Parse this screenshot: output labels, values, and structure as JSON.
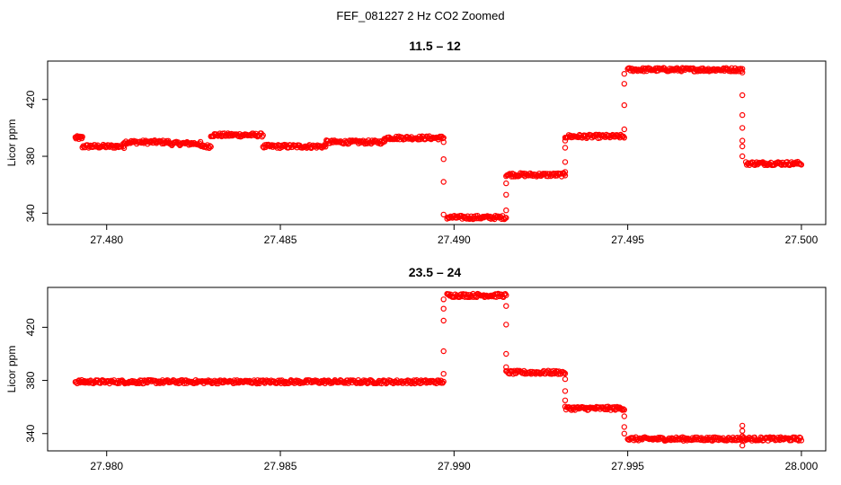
{
  "figure": {
    "title": "FEF_081227  2 Hz CO2 Zoomed",
    "marker_color": "#ff0000"
  },
  "chart_data": [
    {
      "type": "scatter",
      "title": "11.5 – 12",
      "xlabel": "",
      "ylabel": "Licor ppm",
      "xlim": [
        27.4783,
        27.5007
      ],
      "ylim": [
        332,
        447
      ],
      "xticks": [
        "27.480",
        "27.485",
        "27.490",
        "27.495",
        "27.500"
      ],
      "xtick_values": [
        27.48,
        27.485,
        27.49,
        27.495,
        27.5
      ],
      "yticks": [
        "340",
        "380",
        "420"
      ],
      "ytick_values": [
        340,
        380,
        420
      ],
      "grid": false,
      "segments": [
        {
          "x0": 27.4791,
          "x1": 27.4793,
          "y": 393
        },
        {
          "x0": 27.4793,
          "x1": 27.4805,
          "y": 387
        },
        {
          "x0": 27.4805,
          "x1": 27.4818,
          "y": 390
        },
        {
          "x0": 27.4818,
          "x1": 27.4827,
          "y": 389
        },
        {
          "x0": 27.4827,
          "x1": 27.483,
          "y": 387
        },
        {
          "x0": 27.483,
          "x1": 27.4845,
          "y": 395
        },
        {
          "x0": 27.4845,
          "x1": 27.4863,
          "y": 387
        },
        {
          "x0": 27.4863,
          "x1": 27.488,
          "y": 390
        },
        {
          "x0": 27.488,
          "x1": 27.4897,
          "y": 393
        },
        {
          "x0": 27.4898,
          "x1": 27.4915,
          "y": 337
        },
        {
          "x0": 27.4915,
          "x1": 27.4932,
          "y": 367
        },
        {
          "x0": 27.4932,
          "x1": 27.4949,
          "y": 394
        },
        {
          "x0": 27.495,
          "x1": 27.4983,
          "y": 441
        },
        {
          "x0": 27.4984,
          "x1": 27.5,
          "y": 375
        }
      ],
      "transitions": [
        {
          "x": 27.4897,
          "ys": [
            390,
            378,
            362,
            339
          ]
        },
        {
          "x": 27.4915,
          "ys": [
            342,
            353,
            361
          ]
        },
        {
          "x": 27.4932,
          "ys": [
            369,
            376,
            386,
            391
          ]
        },
        {
          "x": 27.4949,
          "ys": [
            399,
            416,
            431,
            438
          ]
        },
        {
          "x": 27.4983,
          "ys": [
            439,
            423,
            409,
            400,
            391,
            387,
            380
          ]
        }
      ]
    },
    {
      "type": "scatter",
      "title": "23.5 – 24",
      "xlabel": "",
      "ylabel": "Licor ppm",
      "xlim": [
        27.9783,
        28.0007
      ],
      "ylim": [
        327,
        450
      ],
      "xticks": [
        "27.980",
        "27.985",
        "27.990",
        "27.995",
        "28.000"
      ],
      "xtick_values": [
        27.98,
        27.985,
        27.99,
        27.995,
        28.0
      ],
      "yticks": [
        "340",
        "380",
        "420"
      ],
      "ytick_values": [
        340,
        380,
        420
      ],
      "grid": false,
      "segments": [
        {
          "x0": 27.9791,
          "x1": 27.9897,
          "y": 379
        },
        {
          "x0": 27.9898,
          "x1": 27.9915,
          "y": 444
        },
        {
          "x0": 27.9915,
          "x1": 27.9932,
          "y": 386
        },
        {
          "x0": 27.9932,
          "x1": 27.9949,
          "y": 359
        },
        {
          "x0": 27.995,
          "x1": 28.0,
          "y": 336
        }
      ],
      "transitions": [
        {
          "x": 27.9897,
          "ys": [
            385,
            402,
            425,
            434,
            441
          ]
        },
        {
          "x": 27.9915,
          "ys": [
            436,
            422,
            400,
            390
          ]
        },
        {
          "x": 27.9932,
          "ys": [
            381,
            372,
            365
          ]
        },
        {
          "x": 27.9949,
          "ys": [
            353,
            345,
            340
          ]
        },
        {
          "x": 27.9983,
          "ys": [
            346,
            342,
            331,
            338
          ]
        }
      ]
    }
  ]
}
